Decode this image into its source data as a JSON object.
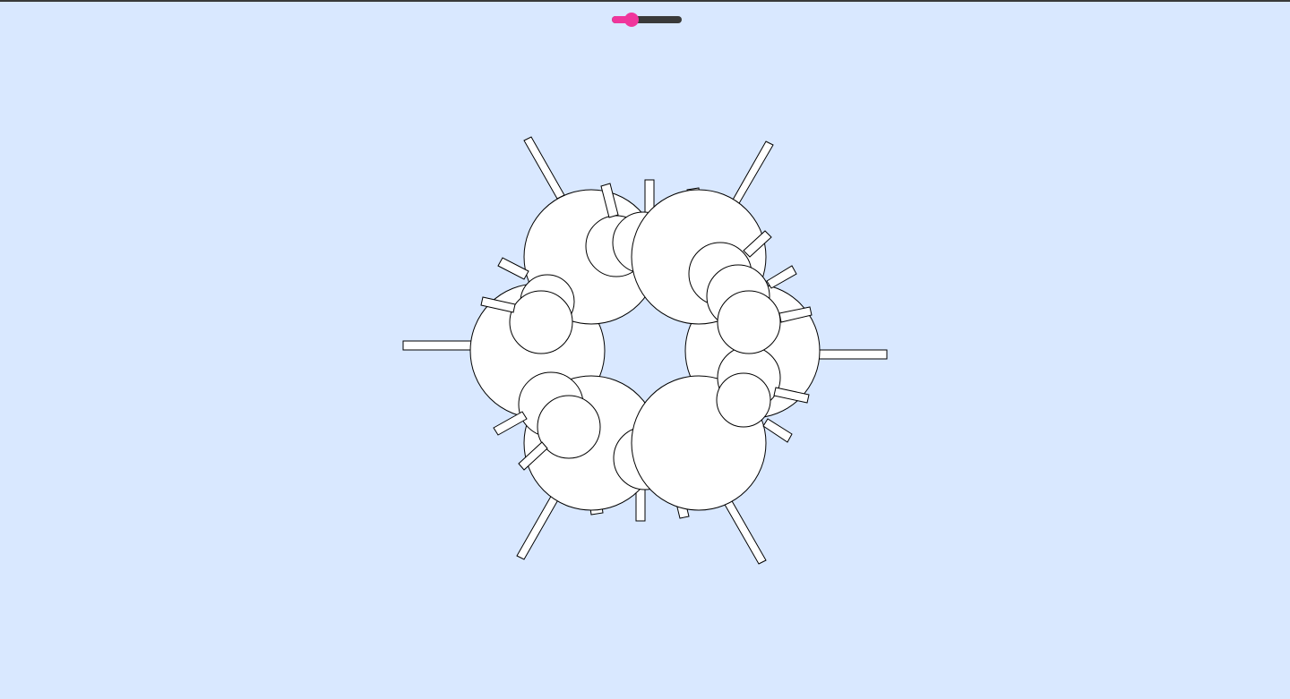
{
  "colors": {
    "background": "#d9e8ff",
    "slider_accent": "#f0359c",
    "slider_track": "#3a3a3a",
    "shape_fill": "#ffffff",
    "shape_stroke": "#000000"
  },
  "slider": {
    "value": 0.28
  }
}
